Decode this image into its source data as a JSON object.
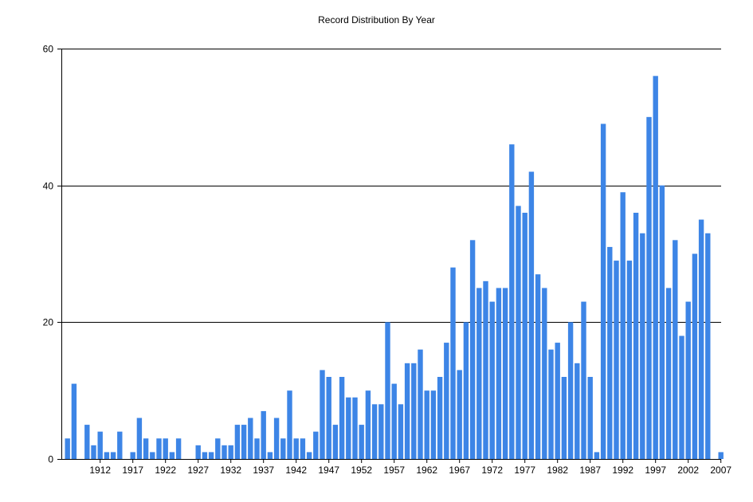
{
  "chart_data": {
    "type": "bar",
    "title": "Record Distribution By Year",
    "xlabel": "",
    "ylabel": "",
    "ylim": [
      0,
      60
    ],
    "yticks": [
      0,
      20,
      40,
      60
    ],
    "xtick_labels": [
      "1912",
      "1917",
      "1922",
      "1927",
      "1932",
      "1937",
      "1942",
      "1947",
      "1952",
      "1957",
      "1962",
      "1967",
      "1972",
      "1977",
      "1982",
      "1987",
      "1992",
      "1997",
      "2002",
      "2007"
    ],
    "grid": "horizontal",
    "bar_color": "#3d85e6",
    "categories": [
      1907,
      1908,
      1909,
      1910,
      1911,
      1912,
      1913,
      1914,
      1915,
      1916,
      1917,
      1918,
      1919,
      1920,
      1921,
      1922,
      1923,
      1924,
      1925,
      1926,
      1927,
      1928,
      1929,
      1930,
      1931,
      1932,
      1933,
      1934,
      1935,
      1936,
      1937,
      1938,
      1939,
      1940,
      1941,
      1942,
      1943,
      1944,
      1945,
      1946,
      1947,
      1948,
      1949,
      1950,
      1951,
      1952,
      1953,
      1954,
      1955,
      1956,
      1957,
      1958,
      1959,
      1960,
      1961,
      1962,
      1963,
      1964,
      1965,
      1966,
      1967,
      1968,
      1969,
      1970,
      1971,
      1972,
      1973,
      1974,
      1975,
      1976,
      1977,
      1978,
      1979,
      1980,
      1981,
      1982,
      1983,
      1984,
      1985,
      1986,
      1987,
      1988,
      1989,
      1990,
      1991,
      1992,
      1993,
      1994,
      1995,
      1996,
      1997,
      1998,
      1999,
      2000,
      2001,
      2002,
      2003,
      2004,
      2005,
      2006,
      2007
    ],
    "values": [
      3,
      11,
      0,
      5,
      2,
      4,
      1,
      1,
      4,
      0,
      1,
      6,
      3,
      1,
      3,
      3,
      1,
      3,
      0,
      0,
      2,
      1,
      1,
      3,
      2,
      2,
      5,
      5,
      6,
      3,
      7,
      1,
      6,
      3,
      10,
      3,
      3,
      1,
      4,
      13,
      12,
      5,
      12,
      9,
      9,
      5,
      10,
      8,
      8,
      20,
      11,
      8,
      14,
      14,
      16,
      10,
      10,
      12,
      17,
      28,
      13,
      20,
      32,
      25,
      26,
      23,
      25,
      25,
      46,
      37,
      36,
      42,
      27,
      25,
      16,
      17,
      12,
      20,
      14,
      23,
      12,
      1,
      49,
      31,
      29,
      39,
      29,
      36,
      33,
      50,
      56,
      40,
      25,
      32,
      18,
      23,
      30,
      35,
      33,
      0,
      1
    ]
  }
}
